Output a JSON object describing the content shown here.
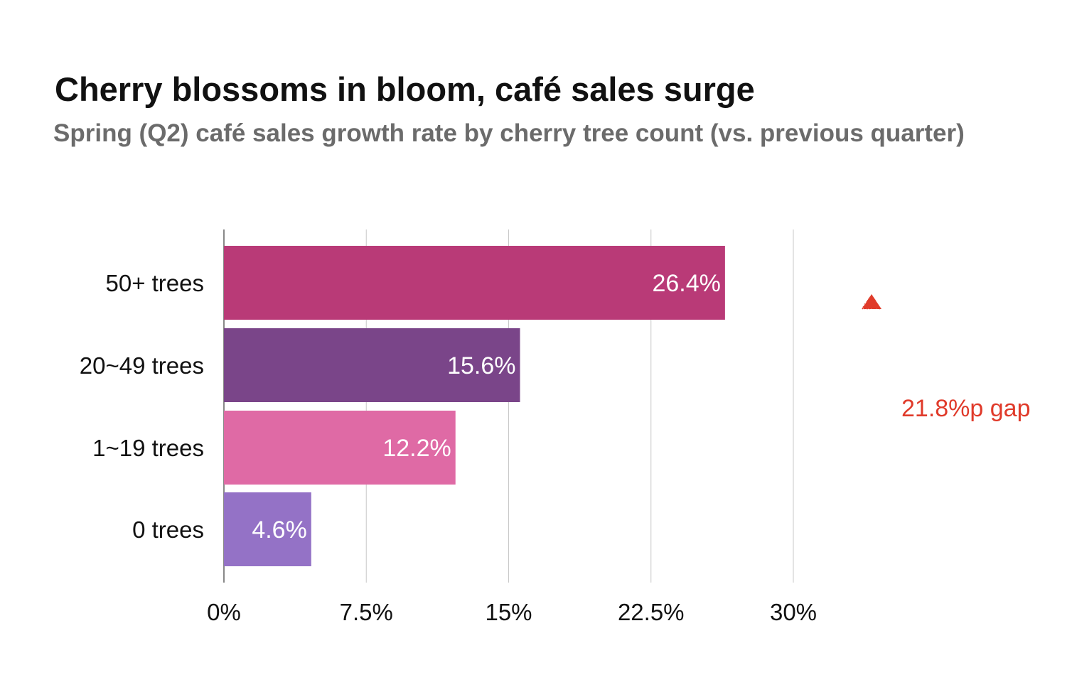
{
  "chart_data": {
    "type": "bar",
    "orientation": "horizontal",
    "title": "Cherry blossoms in bloom, café sales surge",
    "subtitle": "Spring (Q2) café sales growth rate by cherry tree count (vs. previous quarter)",
    "xlabel": "",
    "ylabel": "",
    "categories": [
      "50+ trees",
      "20~49 trees",
      "1~19 trees",
      "0 trees"
    ],
    "values": [
      26.4,
      15.6,
      12.2,
      4.6
    ],
    "data_labels": [
      "26.4%",
      "15.6%",
      "12.2%",
      "4.6%"
    ],
    "colors": [
      "#B93A77",
      "#7A4589",
      "#DF6AA5",
      "#9472C6"
    ],
    "xlim": [
      0,
      30
    ],
    "x_ticks": [
      0,
      7.5,
      15,
      22.5,
      30
    ],
    "x_tick_labels": [
      "0%",
      "7.5%",
      "15%",
      "22.5%",
      "30%"
    ],
    "grid": "vertical",
    "annotation": {
      "text": "21.8%p gap",
      "from_category": "0 trees",
      "to_category": "50+ trees",
      "color": "#E03A2A"
    }
  }
}
